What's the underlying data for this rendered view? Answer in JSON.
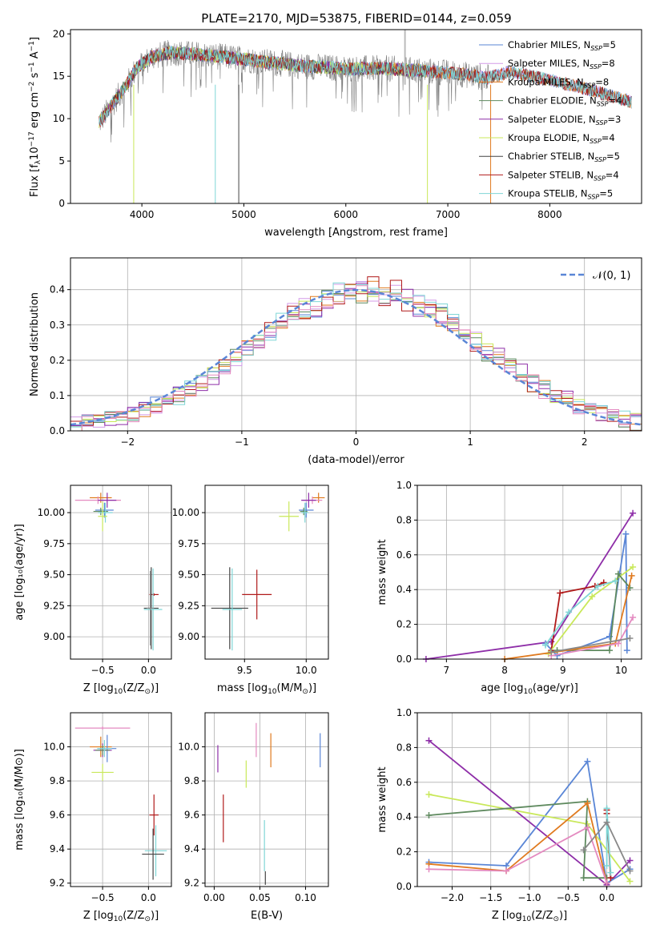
{
  "title": "PLATE=2170, MJD=53875, FIBERID=0144, z=0.059",
  "colors": {
    "chabrier_miles": "#5a86d6",
    "salpeter_miles": "#d39be8",
    "kroupa_miles": "#e07a1f",
    "chabrier_elodie": "#5f8a5f",
    "salpeter_elodie": "#8e2ea8",
    "kroupa_elodie": "#c9e85a",
    "chabrier_stelib": "#444444",
    "salpeter_stelib": "#b01a1a",
    "kroupa_stelib": "#7fd6d6",
    "pink": "#e48ac0",
    "gray": "#888888",
    "normal": "#5a86d6"
  },
  "chart_data": [
    {
      "id": "spectrum",
      "type": "line",
      "xlabel": "wavelength [Angstrom, rest frame]",
      "ylabel": "Flux [f_λ10^-17 erg cm^-2 s^-1 A^-1]",
      "xlim": [
        3300,
        8900
      ],
      "ylim": [
        0,
        20.5
      ],
      "xticks": [
        "4000",
        "5000",
        "6000",
        "7000",
        "8000"
      ],
      "yticks": [
        "0",
        "5",
        "10",
        "15",
        "20"
      ],
      "legend_position": "top-right",
      "legend": [
        {
          "label": "Chabrier MILES, N",
          "sub": "SSP",
          "eq": "=5"
        },
        {
          "label": "Salpeter MILES, N",
          "sub": "SSP",
          "eq": "=8"
        },
        {
          "label": "Kroupa MILES, N",
          "sub": "SSP",
          "eq": "=8"
        },
        {
          "label": "Chabrier ELODIE, N",
          "sub": "SSP",
          "eq": "=4"
        },
        {
          "label": "Salpeter ELODIE, N",
          "sub": "SSP",
          "eq": "=3"
        },
        {
          "label": "Kroupa ELODIE, N",
          "sub": "SSP",
          "eq": "=4"
        },
        {
          "label": "Chabrier STELIB, N",
          "sub": "SSP",
          "eq": "=5"
        },
        {
          "label": "Salpeter STELIB, N",
          "sub": "SSP",
          "eq": "=4"
        },
        {
          "label": "Kroupa STELIB, N",
          "sub": "SSP",
          "eq": "=5"
        }
      ],
      "continuum": [
        [
          3580,
          9.5
        ],
        [
          3700,
          11.5
        ],
        [
          3850,
          14.0
        ],
        [
          3950,
          16.0
        ],
        [
          4100,
          17.3
        ],
        [
          4300,
          17.8
        ],
        [
          4500,
          17.6
        ],
        [
          4800,
          17.3
        ],
        [
          5200,
          16.7
        ],
        [
          5600,
          16.2
        ],
        [
          6000,
          15.9
        ],
        [
          6400,
          15.9
        ],
        [
          6800,
          15.6
        ],
        [
          7100,
          15.3
        ],
        [
          7400,
          14.8
        ],
        [
          7600,
          15.5
        ],
        [
          7900,
          14.8
        ],
        [
          8300,
          13.7
        ],
        [
          8800,
          12.0
        ]
      ],
      "model_start": [
        3580,
        8800
      ],
      "data_range": [
        3580,
        7400
      ]
    },
    {
      "id": "residuals",
      "type": "histogram",
      "xlabel": "(data-model)/error",
      "ylabel": "Normed distribution",
      "xlim": [
        -2.5,
        2.5
      ],
      "ylim": [
        0,
        0.49
      ],
      "xticks": [
        "−2",
        "−1",
        "0",
        "1",
        "2"
      ],
      "yticks": [
        "0.0",
        "0.1",
        "0.2",
        "0.3",
        "0.4"
      ],
      "legend": "𝒩(0, 1)",
      "bin_width": 0.1,
      "line_style": "dashed"
    },
    {
      "id": "age_vs_Z",
      "type": "errorbar",
      "xlabel": "Z [log",
      "xlabel_sub": "10",
      "xlabel_tail": "(Z/Z",
      "xlabel_sub2": "⊙",
      "xlabel_end": ")]",
      "ylabel": "age  [log10(age/yr)]",
      "xlim": [
        -0.85,
        0.25
      ],
      "ylim": [
        8.82,
        10.22
      ],
      "xticks": [
        "−0.5",
        "0.0"
      ],
      "yticks": [
        "9.00",
        "9.25",
        "9.50",
        "9.75",
        "10.00"
      ],
      "points": [
        {
          "x": -0.52,
          "xe": 0.12,
          "y": 10.12,
          "ye": 0.04,
          "c": "kroupa_miles"
        },
        {
          "x": -0.55,
          "xe": 0.25,
          "y": 10.1,
          "ye": 0.03,
          "c": "pink"
        },
        {
          "x": -0.45,
          "xe": 0.1,
          "y": 10.1,
          "ye": 0.06,
          "c": "salpeter_elodie"
        },
        {
          "x": -0.48,
          "xe": 0.1,
          "y": 10.02,
          "ye": 0.06,
          "c": "chabrier_miles"
        },
        {
          "x": -0.52,
          "xe": 0.08,
          "y": 10.01,
          "ye": 0.03,
          "c": "chabrier_elodie"
        },
        {
          "x": -0.47,
          "xe": 0.08,
          "y": 10.0,
          "ye": 0.08,
          "c": "kroupa_stelib"
        },
        {
          "x": -0.5,
          "xe": 0.05,
          "y": 9.97,
          "ye": 0.12,
          "c": "kroupa_elodie"
        },
        {
          "x": 0.06,
          "xe": 0.05,
          "y": 9.34,
          "ye": 0.01,
          "c": "salpeter_stelib"
        },
        {
          "x": 0.03,
          "xe": 0.08,
          "y": 9.23,
          "ye": 0.33,
          "c": "chabrier_stelib"
        },
        {
          "x": 0.05,
          "xe": 0.1,
          "y": 9.22,
          "ye": 0.33,
          "c": "kroupa_stelib"
        },
        {
          "x": 0.02,
          "xe": 0.04,
          "y": 9.23,
          "ye": 0.3,
          "c": "gray"
        }
      ]
    },
    {
      "id": "age_vs_mass",
      "type": "errorbar",
      "xlabel": "mass [log",
      "xlabel_sub": "10",
      "xlabel_tail": "(M/M",
      "xlabel_sub2": "⊙",
      "xlabel_end": ")]",
      "xlim": [
        9.18,
        10.18
      ],
      "ylim": [
        8.82,
        10.22
      ],
      "xticks": [
        "9.5",
        "10.0"
      ],
      "yticks": [
        "9.00",
        "9.25",
        "9.50",
        "9.75",
        "10.00"
      ],
      "points": [
        {
          "x": 10.1,
          "xe": 0.05,
          "y": 10.12,
          "ye": 0.04,
          "c": "kroupa_miles"
        },
        {
          "x": 10.05,
          "xe": 0.08,
          "y": 10.1,
          "ye": 0.03,
          "c": "pink"
        },
        {
          "x": 10.02,
          "xe": 0.06,
          "y": 10.1,
          "ye": 0.06,
          "c": "salpeter_elodie"
        },
        {
          "x": 10.0,
          "xe": 0.06,
          "y": 10.02,
          "ye": 0.06,
          "c": "chabrier_miles"
        },
        {
          "x": 9.98,
          "xe": 0.03,
          "y": 10.01,
          "ye": 0.03,
          "c": "chabrier_elodie"
        },
        {
          "x": 9.99,
          "xe": 0.03,
          "y": 10.0,
          "ye": 0.08,
          "c": "kroupa_stelib"
        },
        {
          "x": 9.86,
          "xe": 0.08,
          "y": 9.97,
          "ye": 0.12,
          "c": "kroupa_elodie"
        },
        {
          "x": 9.6,
          "xe": 0.12,
          "y": 9.34,
          "ye": 0.2,
          "c": "salpeter_stelib"
        },
        {
          "x": 9.38,
          "xe": 0.15,
          "y": 9.23,
          "ye": 0.33,
          "c": "chabrier_stelib"
        },
        {
          "x": 9.4,
          "xe": 0.08,
          "y": 9.22,
          "ye": 0.33,
          "c": "kroupa_stelib"
        }
      ]
    },
    {
      "id": "weight_vs_age",
      "type": "line",
      "xlabel": "age  [log",
      "xlabel_sub": "10",
      "xlabel_tail": "(age/yr)]",
      "ylabel": "mass weight",
      "xlim": [
        6.5,
        10.35
      ],
      "ylim": [
        0,
        1.0
      ],
      "xticks": [
        "7",
        "8",
        "9",
        "10"
      ],
      "yticks": [
        "0.0",
        "0.2",
        "0.4",
        "0.6",
        "0.8",
        "1.0"
      ],
      "series": [
        {
          "c": "salpeter_elodie",
          "x": [
            6.65,
            8.8,
            10.2
          ],
          "y": [
            0.0,
            0.1,
            0.84
          ]
        },
        {
          "c": "chabrier_miles",
          "x": [
            8.7,
            8.9,
            9.8,
            10.08,
            10.1
          ],
          "y": [
            0.09,
            0.02,
            0.13,
            0.72,
            0.05
          ]
        },
        {
          "c": "salpeter_stelib",
          "x": [
            8.8,
            8.95,
            9.55,
            9.7
          ],
          "y": [
            0.05,
            0.38,
            0.42,
            0.44
          ]
        },
        {
          "c": "kroupa_elodie",
          "x": [
            8.75,
            9.5,
            10.2
          ],
          "y": [
            0.03,
            0.36,
            0.53
          ]
        },
        {
          "c": "chabrier_elodie",
          "x": [
            8.9,
            9.8,
            9.95,
            10.15
          ],
          "y": [
            0.05,
            0.05,
            0.49,
            0.41
          ]
        },
        {
          "c": "kroupa_miles",
          "x": [
            8.0,
            9.9,
            10.18
          ],
          "y": [
            0.0,
            0.09,
            0.48
          ]
        },
        {
          "c": "pink",
          "x": [
            8.8,
            9.95,
            10.2
          ],
          "y": [
            0.02,
            0.09,
            0.24
          ]
        },
        {
          "c": "kroupa_stelib",
          "x": [
            8.7,
            9.1,
            9.6,
            9.9
          ],
          "y": [
            0.08,
            0.27,
            0.42,
            0.45
          ]
        },
        {
          "c": "gray",
          "x": [
            8.8,
            10.15
          ],
          "y": [
            0.04,
            0.12
          ]
        }
      ]
    },
    {
      "id": "mass_vs_Z",
      "type": "errorbar",
      "xlabel": "Z [log",
      "xlabel_sub": "10",
      "xlabel_tail": "(Z/Z",
      "xlabel_sub2": "⊙",
      "xlabel_end": ")]",
      "ylabel": "mass [log10(M/M⊙)]",
      "xlim": [
        -0.85,
        0.25
      ],
      "ylim": [
        9.18,
        10.2
      ],
      "xticks": [
        "−0.5",
        "0.0"
      ],
      "yticks": [
        "9.2",
        "9.4",
        "9.6",
        "9.8",
        "10.0"
      ],
      "points": [
        {
          "x": -0.5,
          "xe": 0.3,
          "y": 10.11,
          "ye": 0.01,
          "c": "pink"
        },
        {
          "x": -0.52,
          "xe": 0.12,
          "y": 10.0,
          "ye": 0.06,
          "c": "kroupa_miles"
        },
        {
          "x": -0.45,
          "xe": 0.1,
          "y": 9.99,
          "ye": 0.08,
          "c": "chabrier_miles"
        },
        {
          "x": -0.5,
          "xe": 0.1,
          "y": 9.98,
          "ye": 0.04,
          "c": "salpeter_elodie"
        },
        {
          "x": -0.5,
          "xe": 0.08,
          "y": 9.98,
          "ye": 0.03,
          "c": "chabrier_elodie"
        },
        {
          "x": -0.48,
          "xe": 0.08,
          "y": 9.99,
          "ye": 0.05,
          "c": "kroupa_stelib"
        },
        {
          "x": -0.5,
          "xe": 0.12,
          "y": 9.85,
          "ye": 0.05,
          "c": "kroupa_elodie"
        },
        {
          "x": 0.06,
          "xe": 0.05,
          "y": 9.6,
          "ye": 0.12,
          "c": "salpeter_stelib"
        },
        {
          "x": 0.08,
          "xe": 0.12,
          "y": 9.39,
          "ye": 0.15,
          "c": "kroupa_stelib"
        },
        {
          "x": 0.05,
          "xe": 0.12,
          "y": 9.37,
          "ye": 0.15,
          "c": "chabrier_stelib"
        }
      ]
    },
    {
      "id": "mass_vs_ebv",
      "type": "errorbar",
      "xlabel": "E(B-V)",
      "xlim": [
        -0.01,
        0.125
      ],
      "ylim": [
        9.18,
        10.2
      ],
      "xticks": [
        "0.00",
        "0.05",
        "0.10"
      ],
      "yticks": [
        "9.2",
        "9.4",
        "9.6",
        "9.8",
        "10.0"
      ],
      "points": [
        {
          "x": 0.046,
          "xe": 0,
          "y": 10.04,
          "ye": 0.1,
          "c": "pink"
        },
        {
          "x": 0.116,
          "xe": 0,
          "y": 9.98,
          "ye": 0.1,
          "c": "chabrier_miles"
        },
        {
          "x": 0.062,
          "xe": 0,
          "y": 9.98,
          "ye": 0.1,
          "c": "kroupa_miles"
        },
        {
          "x": 0.004,
          "xe": 0,
          "y": 9.93,
          "ye": 0.08,
          "c": "salpeter_elodie"
        },
        {
          "x": 0.035,
          "xe": 0,
          "y": 9.84,
          "ye": 0.08,
          "c": "kroupa_elodie"
        },
        {
          "x": 0.01,
          "xe": 0,
          "y": 9.58,
          "ye": 0.14,
          "c": "salpeter_stelib"
        },
        {
          "x": 0.055,
          "xe": 0,
          "y": 9.42,
          "ye": 0.15,
          "c": "kroupa_stelib"
        },
        {
          "x": 0.056,
          "xe": 0,
          "y": 9.23,
          "ye": 0.04,
          "c": "chabrier_stelib"
        }
      ]
    },
    {
      "id": "weight_vs_Z",
      "type": "line",
      "xlabel": "Z [log",
      "xlabel_sub": "10",
      "xlabel_tail": "(Z/Z",
      "xlabel_sub2": "⊙",
      "xlabel_end": ")]",
      "ylabel": "mass weight",
      "xlim": [
        -2.45,
        0.45
      ],
      "ylim": [
        0,
        1.0
      ],
      "xticks": [
        "−2.0",
        "−1.5",
        "−1.0",
        "−0.5",
        "0.0"
      ],
      "yticks": [
        "0.0",
        "0.2",
        "0.4",
        "0.6",
        "0.8",
        "1.0"
      ],
      "series": [
        {
          "c": "salpeter_elodie",
          "x": [
            -2.3,
            0.0,
            0.3
          ],
          "y": [
            0.84,
            0.01,
            0.15
          ]
        },
        {
          "c": "chabrier_miles",
          "x": [
            -2.3,
            -1.3,
            -0.25,
            0.0,
            0.3
          ],
          "y": [
            0.14,
            0.12,
            0.72,
            0.02,
            0.1
          ]
        },
        {
          "c": "kroupa_elodie",
          "x": [
            -2.3,
            -0.25,
            0.3
          ],
          "y": [
            0.53,
            0.36,
            0.03
          ]
        },
        {
          "c": "chabrier_elodie",
          "x": [
            -2.3,
            -0.25,
            -0.3,
            0.0
          ],
          "y": [
            0.41,
            0.49,
            0.05,
            0.05
          ]
        },
        {
          "c": "kroupa_miles",
          "x": [
            -2.3,
            -1.3,
            -0.25,
            0.0
          ],
          "y": [
            0.13,
            0.09,
            0.48,
            0.02
          ]
        },
        {
          "c": "pink",
          "x": [
            -2.3,
            -1.3,
            -0.25,
            0.0
          ],
          "y": [
            0.1,
            0.09,
            0.34,
            0.02
          ]
        },
        {
          "c": "salpeter_stelib",
          "x": [
            0.0,
            0.0,
            0.05
          ],
          "y": [
            0.44,
            0.42,
            0.05
          ]
        },
        {
          "c": "kroupa_stelib",
          "x": [
            0.0,
            0.0,
            0.05
          ],
          "y": [
            0.12,
            0.45,
            0.08
          ]
        },
        {
          "c": "gray",
          "x": [
            -0.3,
            0.0,
            0.3
          ],
          "y": [
            0.21,
            0.37,
            0.09
          ]
        }
      ]
    }
  ]
}
